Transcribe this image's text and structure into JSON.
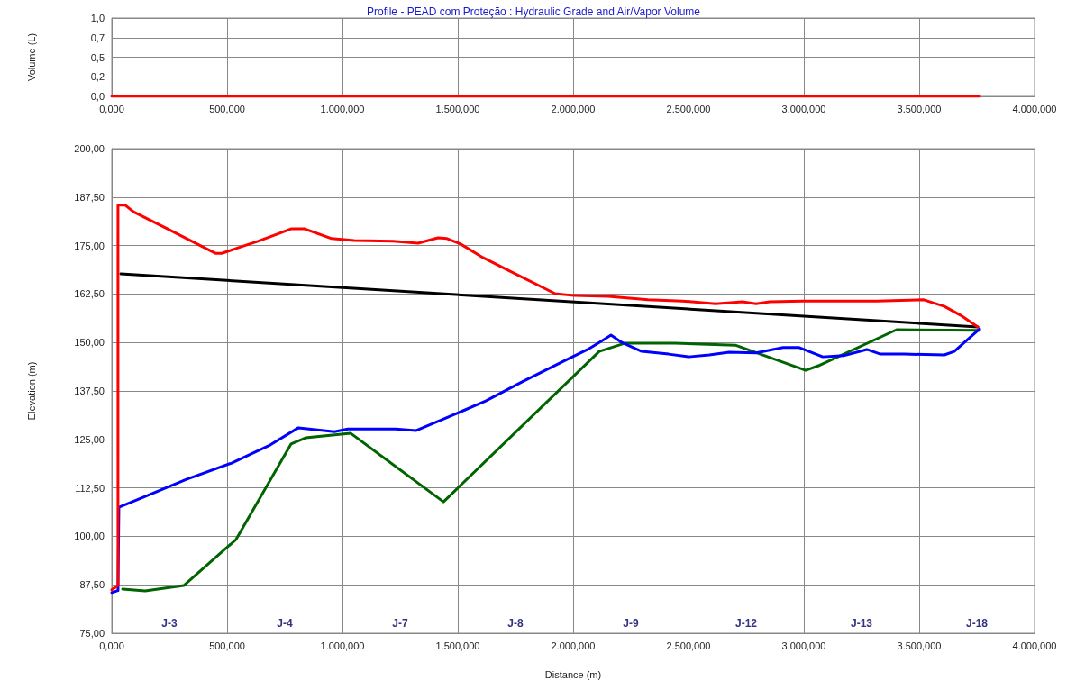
{
  "chart_data": [
    {
      "type": "line",
      "title": "Profile - PEAD com Proteção : Hydraulic Grade and Air/Vapor Volume",
      "ylabel": "Volume (L)",
      "xlim": [
        0,
        4000
      ],
      "xticks": [
        {
          "value": 0,
          "label": "0,000"
        },
        {
          "value": 500,
          "label": "500,000"
        },
        {
          "value": 1000,
          "label": "1.000,000"
        },
        {
          "value": 1500,
          "label": "1.500,000"
        },
        {
          "value": 2000,
          "label": "2.000,000"
        },
        {
          "value": 2500,
          "label": "2.500,000"
        },
        {
          "value": 3000,
          "label": "3.000,000"
        },
        {
          "value": 3500,
          "label": "3.500,000"
        },
        {
          "value": 4000,
          "label": "4.000,000"
        }
      ],
      "ylim": [
        0,
        1
      ],
      "yticks": [
        {
          "value": 0,
          "label": "0,0"
        },
        {
          "value": 0.25,
          "label": "0,2"
        },
        {
          "value": 0.5,
          "label": "0,5"
        },
        {
          "value": 0.75,
          "label": "0,7"
        },
        {
          "value": 1,
          "label": "1,0"
        }
      ],
      "grid": true,
      "marker": "none",
      "series": [
        {
          "color": "#ff0000",
          "x": [
            0,
            3762
          ],
          "values": [
            0,
            0
          ]
        }
      ]
    },
    {
      "type": "line",
      "xlabel": "Distance (m)",
      "ylabel": "Elevation (m)",
      "xlim": [
        0,
        4000
      ],
      "xticks": [
        {
          "value": 0,
          "label": "0,000"
        },
        {
          "value": 500,
          "label": "500,000"
        },
        {
          "value": 1000,
          "label": "1.000,000"
        },
        {
          "value": 1500,
          "label": "1.500,000"
        },
        {
          "value": 2000,
          "label": "2.000,000"
        },
        {
          "value": 2500,
          "label": "2.500,000"
        },
        {
          "value": 3000,
          "label": "3.000,000"
        },
        {
          "value": 3500,
          "label": "3.500,000"
        },
        {
          "value": 4000,
          "label": "4.000,000"
        }
      ],
      "ylim": [
        75,
        200
      ],
      "yticks": [
        {
          "value": 75,
          "label": "75,00"
        },
        {
          "value": 87.5,
          "label": "87,50"
        },
        {
          "value": 100,
          "label": "100,00"
        },
        {
          "value": 112.5,
          "label": "112,50"
        },
        {
          "value": 125,
          "label": "125,00"
        },
        {
          "value": 137.5,
          "label": "137,50"
        },
        {
          "value": 150,
          "label": "150,00"
        },
        {
          "value": 162.5,
          "label": "162,50"
        },
        {
          "value": 175,
          "label": "175,00"
        },
        {
          "value": 187.5,
          "label": "187,50"
        },
        {
          "value": 200,
          "label": "200,00"
        }
      ],
      "grid": true,
      "marker": "none",
      "series": [
        {
          "color": "#006400",
          "x": [
            47,
            145,
            312,
            539,
            777,
            840,
            1035,
            1438,
            2113,
            2223,
            2441,
            2703,
            3008,
            3063,
            3402,
            3762
          ],
          "values": [
            86.4,
            85.9,
            87.3,
            99.2,
            123.8,
            125.4,
            126.6,
            108.9,
            147.7,
            149.8,
            149.8,
            149.3,
            142.8,
            144.0,
            153.3,
            153.1
          ]
        },
        {
          "color": "#0000ff",
          "x": [
            0,
            27,
            31,
            145,
            324,
            520,
            688,
            809,
            883,
            965,
            1023,
            1230,
            1320,
            1441,
            1621,
            1777,
            1973,
            2063,
            2121,
            2164,
            2211,
            2297,
            2414,
            2500,
            2590,
            2676,
            2793,
            2910,
            2980,
            3082,
            3172,
            3273,
            3332,
            3434,
            3609,
            3652,
            3762
          ],
          "values": [
            85.5,
            86.0,
            107.5,
            110.3,
            114.7,
            118.9,
            123.6,
            128.0,
            127.5,
            127.0,
            127.7,
            127.7,
            127.3,
            130.3,
            134.9,
            139.8,
            145.6,
            148.2,
            150.3,
            151.9,
            150.0,
            147.7,
            147.0,
            146.3,
            146.8,
            147.5,
            147.3,
            148.7,
            148.7,
            146.3,
            146.6,
            148.2,
            147.0,
            147.0,
            146.8,
            147.7,
            153.5
          ]
        },
        {
          "color": "#000000",
          "x": [
            39,
            3754
          ],
          "values": [
            167.7,
            154.0
          ]
        },
        {
          "color": "#ff0000",
          "x": [
            0,
            27,
            27,
            59,
            94,
            242,
            449,
            477,
            547,
            633,
            715,
            777,
            836,
            953,
            1051,
            1219,
            1328,
            1414,
            1453,
            1512,
            1609,
            1719,
            1922,
            2004,
            2152,
            2324,
            2473,
            2617,
            2734,
            2793,
            2852,
            2996,
            3172,
            3316,
            3520,
            3609,
            3680,
            3754
          ],
          "values": [
            86.2,
            87.3,
            185.4,
            185.4,
            183.7,
            179.3,
            173.0,
            173.0,
            174.4,
            176.1,
            177.9,
            179.3,
            179.3,
            176.8,
            176.3,
            176.1,
            175.6,
            177.0,
            176.8,
            175.4,
            171.9,
            168.6,
            162.6,
            162.1,
            161.9,
            161.0,
            160.7,
            160.0,
            160.5,
            160.0,
            160.5,
            160.7,
            160.7,
            160.7,
            161.0,
            159.3,
            157.0,
            154.0
          ]
        }
      ],
      "annotations": [
        "J-3",
        "J-4",
        "J-7",
        "J-8",
        "J-9",
        "J-12",
        "J-13",
        "J-18"
      ]
    }
  ]
}
